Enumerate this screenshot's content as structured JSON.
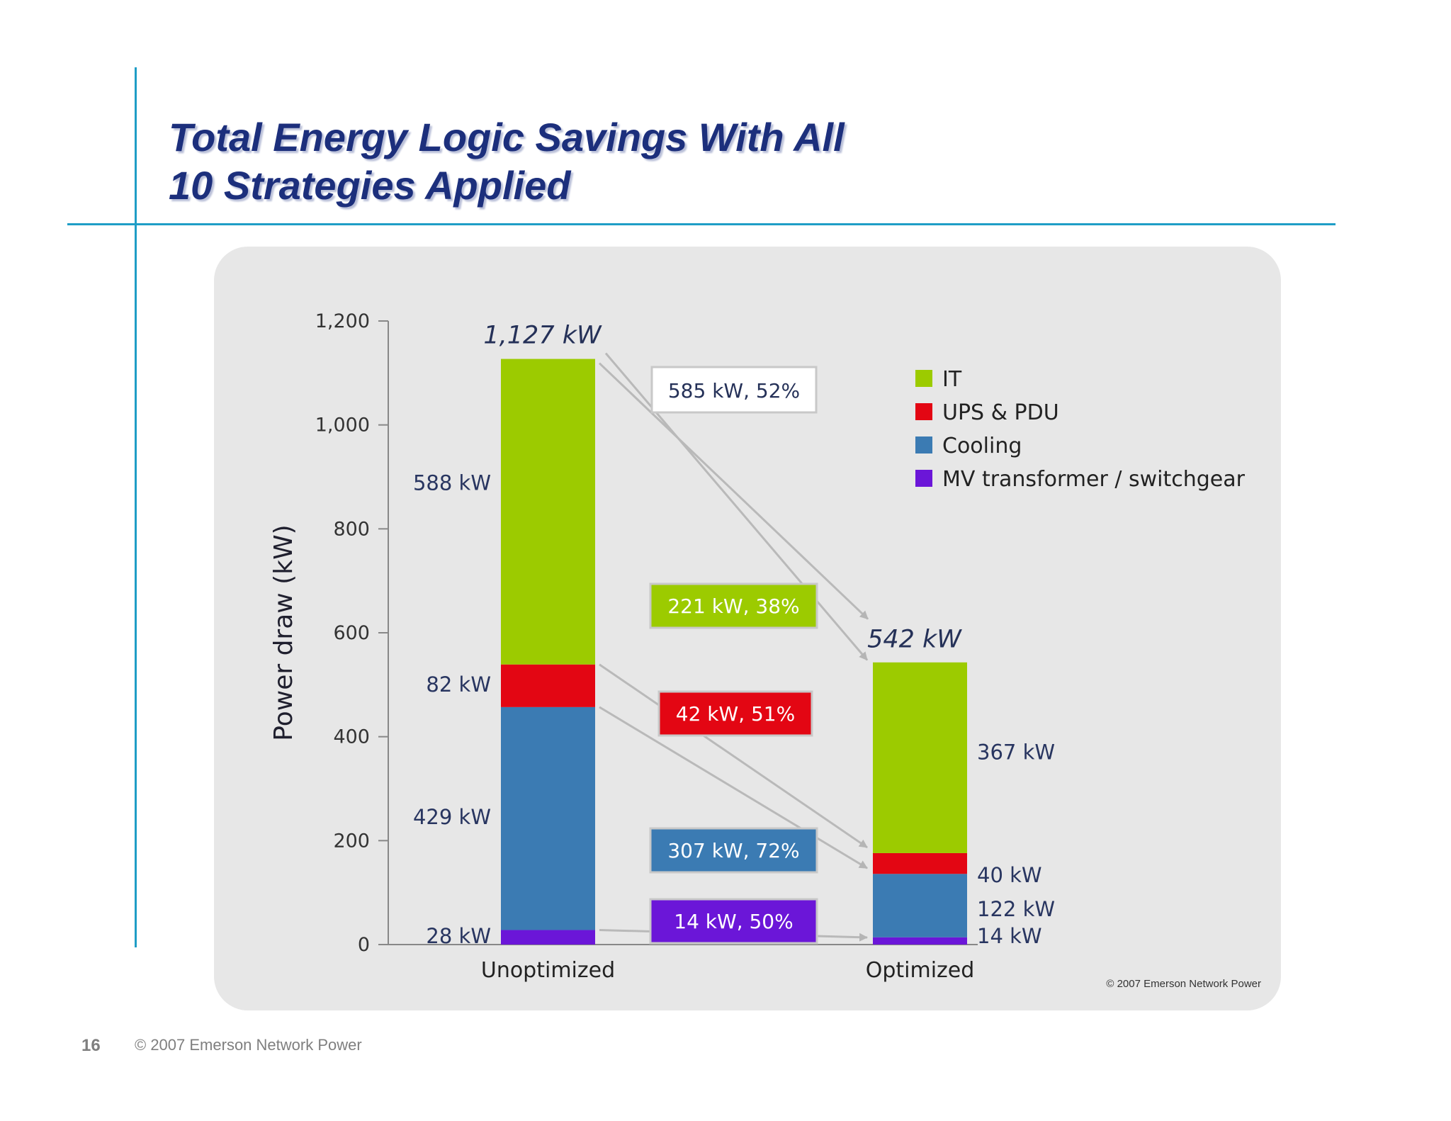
{
  "slide": {
    "title_line1": "Total Energy Logic Savings With All",
    "title_line2": "10 Strategies Applied",
    "page_number": "16",
    "footer": "© 2007 Emerson Network Power"
  },
  "chart_data": {
    "type": "bar",
    "stacked": true,
    "ylabel": "Power draw (kW)",
    "ylim": [
      0,
      1200
    ],
    "yticks": [
      0,
      200,
      400,
      600,
      800,
      1000,
      1200
    ],
    "ytick_labels": [
      "0",
      "200",
      "400",
      "600",
      "800",
      "1,000",
      "1,200"
    ],
    "categories": [
      "Unoptimized",
      "Optimized"
    ],
    "totals": [
      1127,
      542
    ],
    "total_labels": [
      "1,127 kW",
      "542 kW"
    ],
    "series": [
      {
        "name": "MV transformer / switchgear",
        "color": "#6b16d8",
        "values": [
          28,
          14
        ],
        "value_labels": [
          "28 kW",
          "14 kW"
        ],
        "savings_label": "14 kW, 50%"
      },
      {
        "name": "Cooling",
        "color": "#3b7bb3",
        "values": [
          429,
          122
        ],
        "value_labels": [
          "429 kW",
          "122 kW"
        ],
        "savings_label": "307 kW, 72%"
      },
      {
        "name": "UPS & PDU",
        "color": "#e30613",
        "values": [
          82,
          40
        ],
        "value_labels": [
          "82 kW",
          "40 kW"
        ],
        "savings_label": "42 kW, 51%"
      },
      {
        "name": "IT",
        "color": "#9ccb00",
        "values": [
          588,
          367
        ],
        "value_labels": [
          "588 kW",
          "367 kW"
        ],
        "savings_label": "221 kW, 38%"
      }
    ],
    "total_savings_label": "585 kW, 52%",
    "legend_order": [
      "IT",
      "UPS & PDU",
      "Cooling",
      "MV transformer / switchgear"
    ],
    "legend_position": "top-right",
    "grid": false,
    "source_note": "© 2007 Emerson Network Power"
  }
}
